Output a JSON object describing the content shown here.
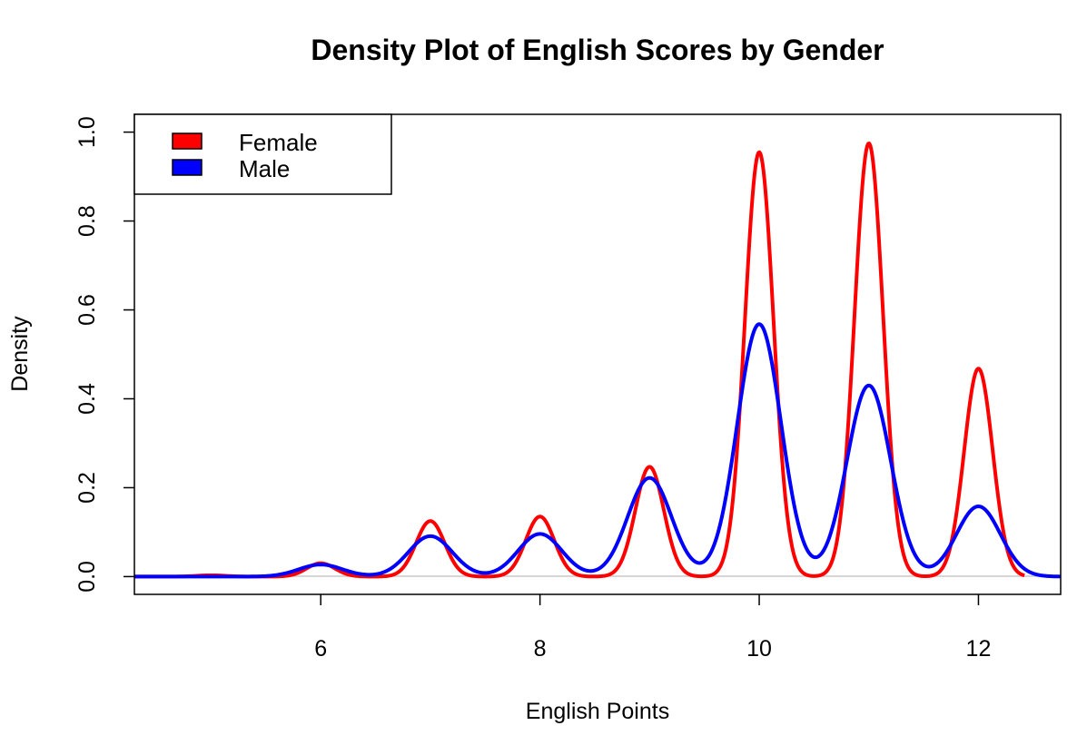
{
  "chart_data": {
    "type": "line",
    "title": "Density Plot of English Scores by Gender",
    "xlabel": "English Points",
    "ylabel": "Density",
    "xlim": [
      4.3,
      12.75
    ],
    "ylim": [
      -0.04,
      1.04
    ],
    "x_ticks": [
      6,
      8,
      10,
      12
    ],
    "x_tick_labels": [
      "6",
      "8",
      "10",
      "12"
    ],
    "y_ticks": [
      0.0,
      0.2,
      0.4,
      0.6,
      0.8,
      1.0
    ],
    "y_tick_labels": [
      "0.0",
      "0.2",
      "0.4",
      "0.6",
      "0.8",
      "1.0"
    ],
    "grid": false,
    "legend": {
      "position": "top-left",
      "entries": [
        {
          "label": "Female",
          "color": "#ff0000"
        },
        {
          "label": "Male",
          "color": "#0000ff"
        }
      ]
    },
    "series": [
      {
        "name": "Female",
        "color": "#ff0000",
        "x_range": [
          4.3,
          12.42
        ],
        "peaks": [
          {
            "x": 5,
            "y": 0.003
          },
          {
            "x": 6,
            "y": 0.03
          },
          {
            "x": 7,
            "y": 0.125
          },
          {
            "x": 8,
            "y": 0.135
          },
          {
            "x": 9,
            "y": 0.247
          },
          {
            "x": 10,
            "y": 0.955
          },
          {
            "x": 11,
            "y": 0.975
          },
          {
            "x": 12,
            "y": 0.468
          }
        ]
      },
      {
        "name": "Male",
        "color": "#0000ff",
        "x_range": [
          4.3,
          12.75
        ],
        "peaks": [
          {
            "x": 6,
            "y": 0.027
          },
          {
            "x": 7,
            "y": 0.091
          },
          {
            "x": 8,
            "y": 0.096
          },
          {
            "x": 9,
            "y": 0.222
          },
          {
            "x": 10,
            "y": 0.568
          },
          {
            "x": 11,
            "y": 0.43
          },
          {
            "x": 12,
            "y": 0.158
          }
        ]
      }
    ]
  }
}
